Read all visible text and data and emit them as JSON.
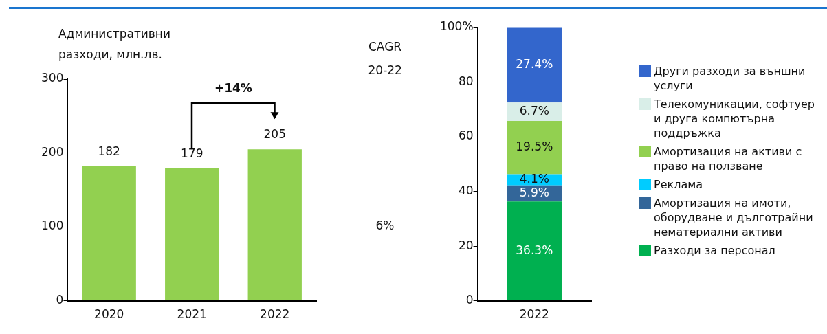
{
  "chart_data": [
    {
      "type": "bar",
      "ylabel": "Административни разходи, млн.лв.",
      "categories": [
        "2020",
        "2021",
        "2022"
      ],
      "values": [
        182,
        179,
        205
      ],
      "color": "#92d050",
      "ylim": [
        0,
        300
      ],
      "yticks": [
        0,
        100,
        200,
        300
      ],
      "data_labels": true,
      "annotations": [
        "+14%",
        "CAGR",
        "20-22",
        "6%"
      ]
    },
    {
      "type": "bar",
      "stacked": true,
      "categories": [
        "2022"
      ],
      "ylim": [
        0,
        100
      ],
      "yticks": [
        0,
        20,
        40,
        60,
        80,
        {
          "value": 100,
          "label": "100%"
        }
      ],
      "legend": "right",
      "series": [
        {
          "name": "Разходи за персонал",
          "color": "#00b050",
          "values": [
            36.3
          ],
          "value_labels": [
            "36.3%"
          ]
        },
        {
          "name": "Амортизация на имоти, оборудване и дълготрайни нематериални активи",
          "color": "#336699",
          "values": [
            5.9
          ],
          "value_labels": [
            "5.9%"
          ]
        },
        {
          "name": "Реклама",
          "color": "#00ccff",
          "values": [
            4.1
          ],
          "value_labels": [
            "4.1%"
          ]
        },
        {
          "name": "Амортизация на активи с право на ползване",
          "color": "#92d050",
          "values": [
            19.5
          ],
          "value_labels": [
            "19.5%"
          ]
        },
        {
          "name": "Телекомуникации, софтуер и друга компютърна поддръжка",
          "color": "#d9eee8",
          "values": [
            6.7
          ],
          "value_labels": [
            "6.7%"
          ]
        },
        {
          "name": "Други разходи за външни услуги",
          "color": "#3366cc",
          "values": [
            27.4
          ],
          "value_labels": [
            "27.4%"
          ]
        }
      ]
    }
  ]
}
